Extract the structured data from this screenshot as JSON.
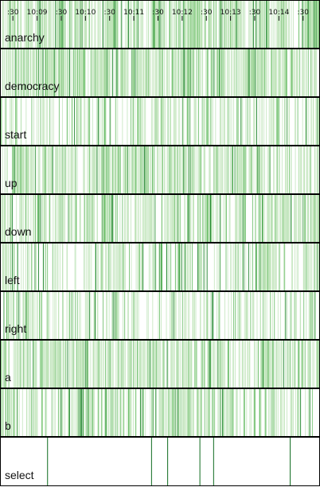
{
  "chart_data": {
    "type": "barcode-timeline",
    "x_start": "10:08:15",
    "x_end": "10:14:50",
    "x_ticks": [
      {
        "t": "10:08:30",
        "label": ":30"
      },
      {
        "t": "10:09:00",
        "label": "10:09"
      },
      {
        "t": "10:09:30",
        "label": ":30"
      },
      {
        "t": "10:10:00",
        "label": "10:10"
      },
      {
        "t": "10:10:30",
        "label": ":30"
      },
      {
        "t": "10:11:00",
        "label": "10:11"
      },
      {
        "t": "10:11:30",
        "label": ":30"
      },
      {
        "t": "10:12:00",
        "label": "10:12"
      },
      {
        "t": "10:12:30",
        "label": ":30"
      },
      {
        "t": "10:13:00",
        "label": "10:13"
      },
      {
        "t": "10:13:30",
        "label": ":30"
      },
      {
        "t": "10:14:00",
        "label": "10:14"
      },
      {
        "t": "10:14:30",
        "label": ":30"
      }
    ],
    "series": [
      {
        "name": "anarchy",
        "level": "very dense",
        "seed": 11
      },
      {
        "name": "democracy",
        "level": "very dense",
        "seed": 23
      },
      {
        "name": "start",
        "level": "medium",
        "seed": 37
      },
      {
        "name": "up",
        "level": "dense",
        "seed": 41
      },
      {
        "name": "down",
        "level": "dense",
        "seed": 53
      },
      {
        "name": "left",
        "level": "medium",
        "seed": 67
      },
      {
        "name": "right",
        "level": "medium",
        "seed": 79
      },
      {
        "name": "a",
        "level": "dense",
        "seed": 83
      },
      {
        "name": "b",
        "level": "dense",
        "seed": 97
      },
      {
        "name": "select",
        "level": "sparse",
        "events": [
          "10:09:13",
          "10:11:22",
          "10:11:42",
          "10:12:22",
          "10:12:39",
          "10:14:14"
        ]
      }
    ],
    "colors": {
      "light": "#b7e0b0",
      "medium": "#55b453",
      "dark": "#0c7a1c",
      "border": "#000000"
    }
  }
}
